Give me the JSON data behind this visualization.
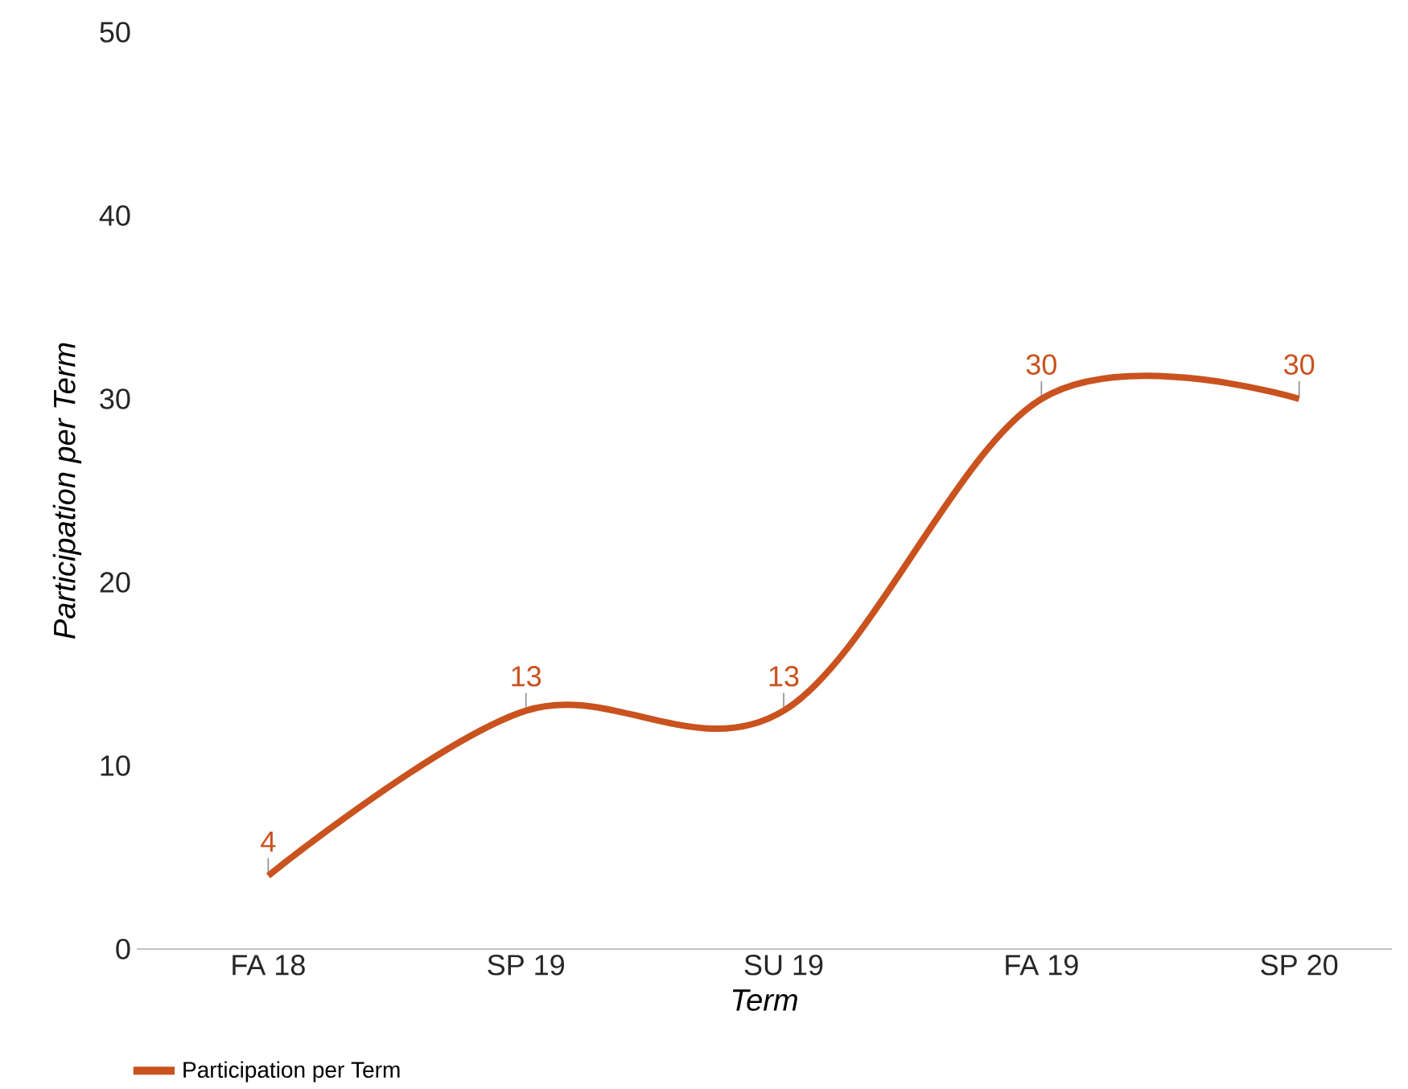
{
  "chart_data": {
    "type": "line",
    "xlabel": "Term",
    "ylabel": "Participation per Term",
    "categories": [
      "FA 18",
      "SP 19",
      "SU 19",
      "FA 19",
      "SP 20"
    ],
    "series": [
      {
        "name": "Participation per Term",
        "color": "#c9521f",
        "values": [
          4,
          13,
          13,
          30,
          30
        ]
      }
    ],
    "ylim": [
      0,
      50
    ],
    "yticks": [
      0,
      10,
      20,
      30,
      40,
      50
    ],
    "grid": false,
    "legend": "bottom left",
    "data_labels": true,
    "marker": "none",
    "line_style": "solid"
  }
}
